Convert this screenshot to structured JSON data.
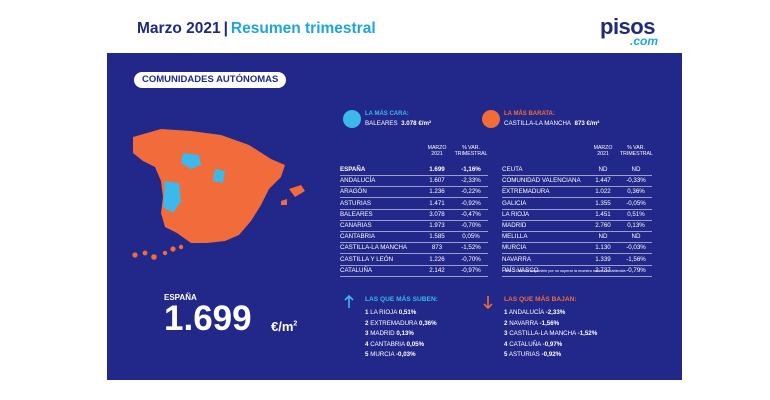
{
  "header": {
    "title": "Marzo 2021",
    "separator": "|",
    "subtitle": "Resumen trimestral"
  },
  "logo": {
    "main": "pisos",
    "suffix": ".com"
  },
  "section_label": "COMUNIDADES AUTÓNOMAS",
  "colors": {
    "panel": "#22288a",
    "accent_blue": "#3cb8ea",
    "accent_orange": "#f26b3a",
    "header_blue": "#1ea6d9"
  },
  "most_expensive": {
    "label": "LA MÁS CARA:",
    "region": "BALEARES",
    "value": "3.078 €/m²"
  },
  "cheapest": {
    "label": "LA MÁS BARATA:",
    "region": "CASTILLA-LA MANCHA",
    "value": "873 €/m²"
  },
  "table_headers": {
    "col1": "MARZO 2021",
    "col2": "% VAR. TRIMESTRAL"
  },
  "table_left": [
    {
      "name": "ESPAÑA",
      "value": "1.699",
      "var": "-1,16%"
    },
    {
      "name": "ANDALUCÍA",
      "value": "1.607",
      "var": "-2,33%"
    },
    {
      "name": "ARAGÓN",
      "value": "1.236",
      "var": "-0,22%"
    },
    {
      "name": "ASTURIAS",
      "value": "1.471",
      "var": "-0,92%"
    },
    {
      "name": "BALEARES",
      "value": "3.078",
      "var": "-0,47%"
    },
    {
      "name": "CANARIAS",
      "value": "1.973",
      "var": "-0,70%"
    },
    {
      "name": "CANTABRIA",
      "value": "1.585",
      "var": "0,05%"
    },
    {
      "name": "CASTILLA-LA MANCHA",
      "value": "873",
      "var": "-1,52%"
    },
    {
      "name": "CASTILLA Y LEÓN",
      "value": "1.226",
      "var": "-0,70%"
    },
    {
      "name": "CATALUÑA",
      "value": "2.142",
      "var": "-0,97%"
    }
  ],
  "table_right": [
    {
      "name": "CEUTA",
      "value": "ND",
      "var": "ND"
    },
    {
      "name": "COMUNIDAD VALENCIANA",
      "value": "1.447",
      "var": "-0,33%"
    },
    {
      "name": "EXTREMADURA",
      "value": "1.022",
      "var": "0,36%"
    },
    {
      "name": "GALICIA",
      "value": "1.355",
      "var": "-0,05%"
    },
    {
      "name": "LA RIOJA",
      "value": "1.451",
      "var": "0,51%"
    },
    {
      "name": "MADRID",
      "value": "2.760",
      "var": "0,13%"
    },
    {
      "name": "MELILLA",
      "value": "ND",
      "var": "ND"
    },
    {
      "name": "MURCIA",
      "value": "1.130",
      "var": "-0,03%"
    },
    {
      "name": "NAVARRA",
      "value": "1.339",
      "var": "-1,56%"
    },
    {
      "name": "PAÍS VASCO",
      "value": "2.737",
      "var": "-0,79%"
    }
  ],
  "note": "N/D – Dato no disponible por no superar la muestra mínima establecida",
  "espana": {
    "label": "ESPAÑA",
    "value": "1.699",
    "unit": "€/m",
    "unit_sup": "2"
  },
  "rising": {
    "title": "LAS QUE MÁS SUBEN:",
    "items": [
      {
        "rank": "1",
        "name": "LA RIOJA",
        "value": "0,51%"
      },
      {
        "rank": "2",
        "name": "EXTREMADURA",
        "value": "0,36%"
      },
      {
        "rank": "3",
        "name": "MADRID",
        "value": "0,13%"
      },
      {
        "rank": "4",
        "name": "CANTABRIA",
        "value": "0,05%"
      },
      {
        "rank": "5",
        "name": "MURCIA",
        "value": "-0,03%"
      }
    ]
  },
  "falling": {
    "title": "LAS QUE MÁS BAJAN:",
    "items": [
      {
        "rank": "1",
        "name": "ANDALUCÍA",
        "value": "-2,33%"
      },
      {
        "rank": "2",
        "name": "NAVARRA",
        "value": "-1,56%"
      },
      {
        "rank": "3",
        "name": "CASTILLA-LA MANCHA",
        "value": "-1,52%"
      },
      {
        "rank": "4",
        "name": "CATALUÑA",
        "value": "-0,97%"
      },
      {
        "rank": "5",
        "name": "ASTURIAS",
        "value": "-0,92%"
      }
    ]
  }
}
